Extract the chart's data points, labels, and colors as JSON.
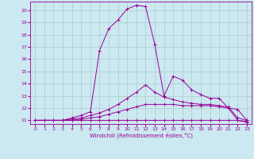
{
  "xlabel": "Windchill (Refroidissement éolien,°C)",
  "bg_color": "#cce8f0",
  "grid_color": "#aacccc",
  "line_color": "#990099",
  "xlim": [
    -0.5,
    23.5
  ],
  "ylim": [
    10.7,
    20.7
  ],
  "xticks": [
    0,
    1,
    2,
    3,
    4,
    5,
    6,
    7,
    8,
    9,
    10,
    11,
    12,
    13,
    14,
    15,
    16,
    17,
    18,
    19,
    20,
    21,
    22,
    23
  ],
  "yticks": [
    11,
    12,
    13,
    14,
    15,
    16,
    17,
    18,
    19,
    20
  ],
  "series": [
    [
      11,
      11,
      11,
      11,
      11,
      11,
      11,
      11,
      11,
      11,
      11,
      11,
      11,
      11,
      11,
      11,
      11,
      11,
      11,
      11,
      11,
      11,
      11,
      10.9
    ],
    [
      11,
      11,
      11,
      11,
      11,
      11.1,
      11.2,
      11.3,
      11.5,
      11.7,
      11.9,
      12.1,
      12.3,
      12.3,
      12.3,
      12.3,
      12.2,
      12.2,
      12.2,
      12.2,
      12.1,
      12.0,
      11.9,
      11.0
    ],
    [
      11,
      11,
      11,
      11,
      11.1,
      11.2,
      11.4,
      11.6,
      11.9,
      12.3,
      12.8,
      13.3,
      13.9,
      13.3,
      12.9,
      12.7,
      12.5,
      12.4,
      12.3,
      12.3,
      12.2,
      12.1,
      11.2,
      11.0
    ],
    [
      11,
      11,
      11,
      11,
      11.2,
      11.4,
      11.7,
      16.7,
      18.5,
      19.2,
      20.1,
      20.4,
      20.3,
      17.2,
      13.0,
      14.6,
      14.3,
      13.5,
      13.1,
      12.8,
      12.8,
      12.0,
      11.0,
      10.85
    ]
  ]
}
